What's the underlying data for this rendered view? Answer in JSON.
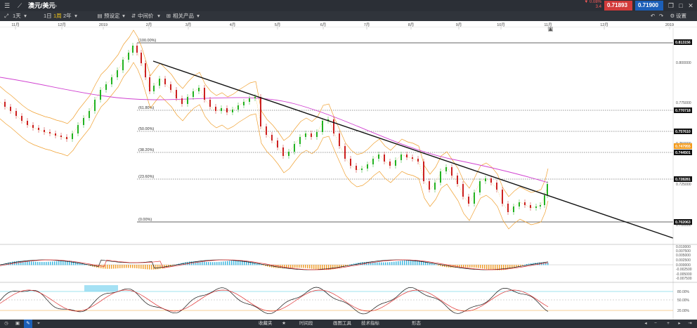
{
  "topbar": {
    "instrument": "澳元/美元",
    "sell_change_pct": "▼ 0.08%",
    "sell_change_pts": "3.4",
    "sell_price": "0.71893",
    "buy_price": "0.71900",
    "colors": {
      "sell": "#d23b3b",
      "buy": "#1c5fb8"
    }
  },
  "subbar": {
    "timeframe": "1天",
    "period_1": "1日",
    "period_2": "1周",
    "period_3": "2年",
    "preset_label": "预设定",
    "price_mode_label": "中间价",
    "related_label": "相关产品",
    "settings_label": "设置"
  },
  "xaxis": {
    "labels": [
      "11月",
      "12月",
      "2019",
      "2月",
      "3月",
      "4月",
      "5月",
      "6月",
      "7月",
      "8月",
      "9月",
      "10月",
      "11月",
      "12月",
      "2019"
    ]
  },
  "price_axis": {
    "ticks": [
      "0.800000",
      "0.775000",
      "0.750000",
      "0.725000",
      "0.700000"
    ],
    "boxes": [
      {
        "label": "0.813156",
        "kind": "level"
      },
      {
        "label": "0.770718",
        "kind": "level"
      },
      {
        "label": "0.757610",
        "kind": "level"
      },
      {
        "label": "0.747955",
        "kind": "current"
      },
      {
        "label": "0.744501",
        "kind": "level"
      },
      {
        "label": "0.728281",
        "kind": "level"
      },
      {
        "label": "0.702063",
        "kind": "level"
      }
    ]
  },
  "fibonacci": {
    "levels": [
      "(100.00%)",
      "(61.80%)",
      "(50.00%)",
      "(38.20%)",
      "(23.60%)",
      "(0.00%)"
    ]
  },
  "macd_axis": {
    "ticks": [
      "0.010000",
      "0.007500",
      "0.005000",
      "0.002500",
      "0.000000",
      "-0.002500",
      "-0.005000",
      "-0.007500"
    ]
  },
  "stoch_axis": {
    "ticks": [
      "80.00%",
      "50.00%",
      "20.00%"
    ]
  },
  "bottombar": {
    "favorites": "收藏夹",
    "timeframe": "时间段",
    "drawing_tools": "画图工具",
    "indicators": "技术指标",
    "patterns": "形态"
  }
}
